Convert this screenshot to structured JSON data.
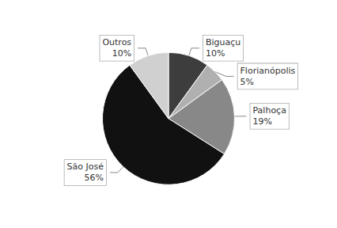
{
  "chart_data": {
    "type": "pie",
    "categories": [
      "Biguaçu",
      "Florianópolis",
      "Palhoça",
      "São José",
      "Outros"
    ],
    "values": [
      10,
      5,
      19,
      56,
      10
    ],
    "value_labels": [
      "10%",
      "5%",
      "19%",
      "56%",
      "10%"
    ],
    "colors": [
      "#3d3d3d",
      "#b0b0b0",
      "#888888",
      "#111111",
      "#d0d0d0"
    ],
    "data_labels": true,
    "legend": false
  }
}
